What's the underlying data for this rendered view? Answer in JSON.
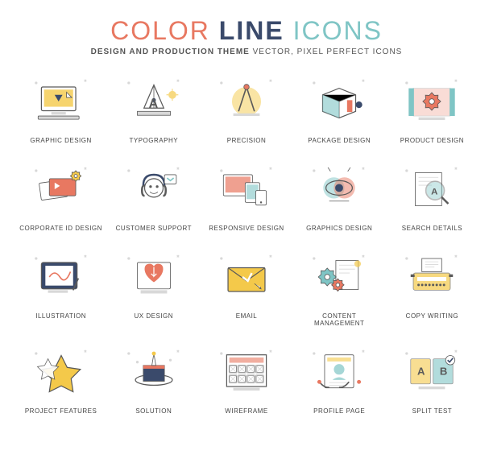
{
  "colors": {
    "coral": "#e87861",
    "navy": "#3a4a6b",
    "teal": "#7fc5c5",
    "yellow": "#f4c94a",
    "line": "#5a5a5a",
    "light": "#d8d8d8",
    "text": "#444444"
  },
  "header": {
    "title_word1": "COLOR",
    "title_word2": "LINE",
    "title_word3": "ICONS",
    "subtitle_bold": "DESIGN AND PRODUCTION THEME",
    "subtitle_rest": " VECTOR, PIXEL PERFECT ICONS"
  },
  "icons": [
    {
      "id": "graphic-design",
      "label": "GRAPHIC DESIGN",
      "accent": "yellow",
      "shape": "monitor"
    },
    {
      "id": "typography",
      "label": "TYPOGRAPHY",
      "accent": "navy",
      "shape": "pen-a"
    },
    {
      "id": "precision",
      "label": "PRECISION",
      "accent": "coral",
      "shape": "compass"
    },
    {
      "id": "package-design",
      "label": "PACKAGE DESIGN",
      "accent": "teal",
      "shape": "package"
    },
    {
      "id": "product-design",
      "label": "PRODUCT DESIGN",
      "accent": "coral",
      "shape": "blueprint"
    },
    {
      "id": "corporate-id",
      "label": "CORPORATE ID DESIGN",
      "accent": "coral",
      "shape": "cards"
    },
    {
      "id": "customer-support",
      "label": "CUSTOMER SUPPORT",
      "accent": "navy",
      "shape": "headset"
    },
    {
      "id": "responsive",
      "label": "RESPONSIVE DESIGN",
      "accent": "coral",
      "shape": "devices"
    },
    {
      "id": "graphics-design",
      "label": "GRAPHICS DESIGN",
      "accent": "yellow",
      "shape": "eye"
    },
    {
      "id": "search-details",
      "label": "SEARCH DETAILS",
      "accent": "teal",
      "shape": "magnify"
    },
    {
      "id": "illustration",
      "label": "ILLUSTRATION",
      "accent": "navy",
      "shape": "tablet"
    },
    {
      "id": "ux-design",
      "label": "UX DESIGN",
      "accent": "coral",
      "shape": "heart"
    },
    {
      "id": "email",
      "label": "EMAIL",
      "accent": "yellow",
      "shape": "envelope"
    },
    {
      "id": "content-mgmt",
      "label": "CONTENT MANAGEMENT",
      "accent": "teal",
      "shape": "gears-doc"
    },
    {
      "id": "copy-writing",
      "label": "COPY WRITING",
      "accent": "yellow",
      "shape": "typewriter"
    },
    {
      "id": "project-features",
      "label": "PROJECT FEATURES",
      "accent": "yellow",
      "shape": "star"
    },
    {
      "id": "solution",
      "label": "SOLUTION",
      "accent": "navy",
      "shape": "hat"
    },
    {
      "id": "wireframe",
      "label": "WIREFRAME",
      "accent": "coral",
      "shape": "wireframe"
    },
    {
      "id": "profile-page",
      "label": "PROFILE PAGE",
      "accent": "yellow",
      "shape": "profile"
    },
    {
      "id": "split-test",
      "label": "SPLIT TEST",
      "accent": "teal",
      "shape": "split"
    }
  ]
}
